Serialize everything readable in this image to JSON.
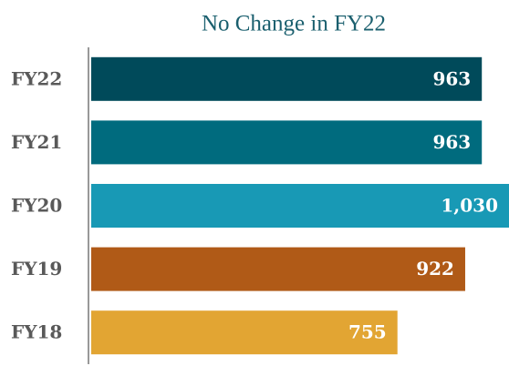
{
  "chart_data": {
    "type": "barh",
    "title": "No Change in FY22",
    "categories": [
      "FY22",
      "FY21",
      "FY20",
      "FY19",
      "FY18"
    ],
    "values": [
      963,
      963,
      1030,
      922,
      755
    ],
    "value_labels": [
      "963",
      "963",
      "1,030",
      "922",
      "755"
    ],
    "colors": [
      "#004a5a",
      "#006b7e",
      "#1899b5",
      "#b05a17",
      "#e2a533"
    ]
  }
}
